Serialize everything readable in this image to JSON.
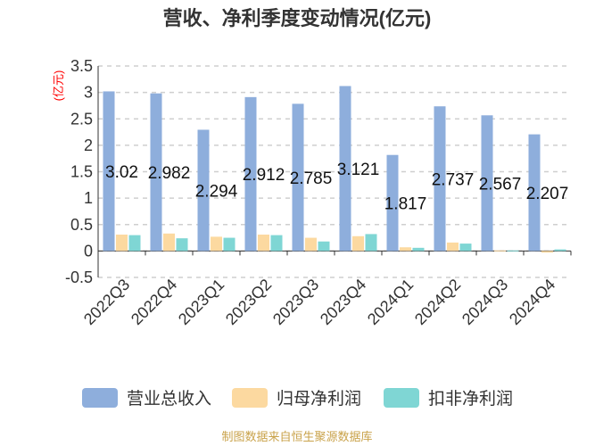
{
  "chart_data": {
    "type": "bar",
    "title": "营收、净利季度变动情况(亿元)",
    "ylabel": "(亿元)",
    "ylim": [
      -0.5,
      3.5
    ],
    "yticks": [
      -0.5,
      0,
      0.5,
      1,
      1.5,
      2,
      2.5,
      3,
      3.5
    ],
    "grid": true,
    "legend_position": "bottom",
    "categories": [
      "2022Q3",
      "2022Q4",
      "2023Q1",
      "2023Q2",
      "2023Q3",
      "2023Q4",
      "2024Q1",
      "2024Q2",
      "2024Q3",
      "2024Q4"
    ],
    "series": [
      {
        "name": "营业总收入",
        "color": "#8eaedc",
        "values": [
          3.02,
          2.982,
          2.294,
          2.912,
          2.785,
          3.121,
          1.817,
          2.737,
          2.567,
          2.207
        ]
      },
      {
        "name": "归母净利润",
        "color": "#fcd9a0",
        "values": [
          0.31,
          0.33,
          0.27,
          0.31,
          0.25,
          0.28,
          0.07,
          0.16,
          0.01,
          -0.03
        ]
      },
      {
        "name": "扣非净利润",
        "color": "#7fd6d4",
        "values": [
          0.3,
          0.24,
          0.25,
          0.3,
          0.18,
          0.32,
          0.06,
          0.14,
          0.01,
          0.03
        ]
      }
    ],
    "data_labels": [
      "3.02",
      "2.982",
      "2.294",
      "2.912",
      "2.785",
      "3.121",
      "1.817",
      "2.737",
      "2.567",
      "2.207"
    ],
    "source": "制图数据来自恒生聚源数据库"
  }
}
